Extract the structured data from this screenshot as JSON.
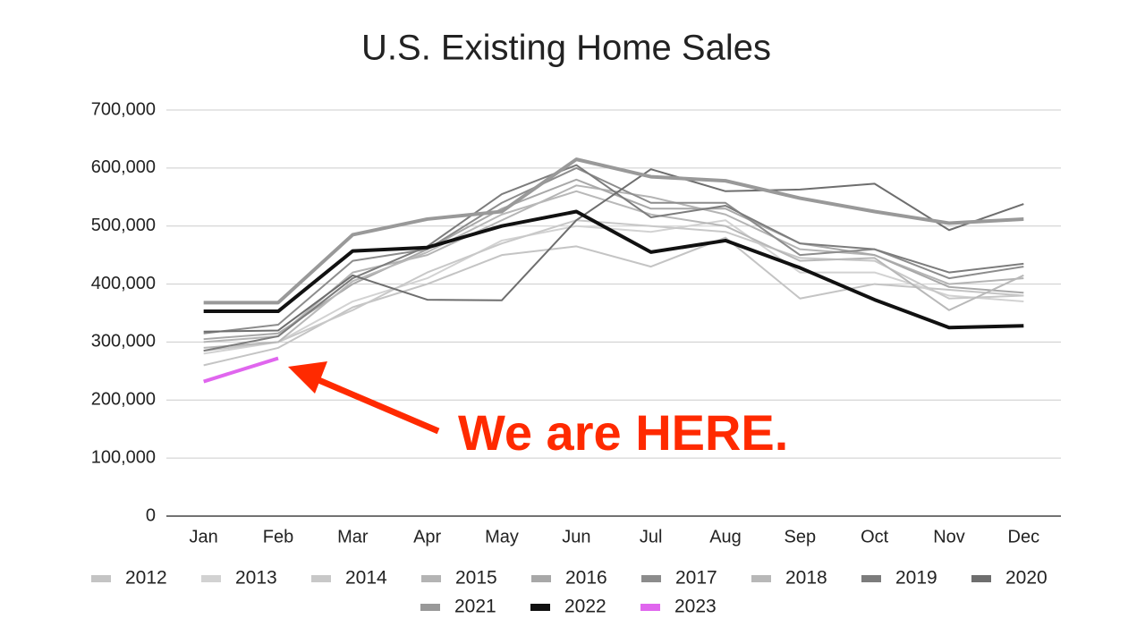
{
  "chart_data": {
    "type": "line",
    "title": "U.S. Existing Home Sales",
    "annotation": "We are HERE.",
    "categories": [
      "Jan",
      "Feb",
      "Mar",
      "Apr",
      "May",
      "Jun",
      "Jul",
      "Aug",
      "Sep",
      "Oct",
      "Nov",
      "Dec"
    ],
    "ylim": [
      0,
      700000
    ],
    "yticks": [
      0,
      {
        "value": 100000,
        "label": "100,000"
      },
      {
        "value": 200000,
        "label": "200,000"
      },
      {
        "value": 300000,
        "label": "300,000"
      },
      {
        "value": 400000,
        "label": "400,000"
      },
      {
        "value": 500000,
        "label": "500,000"
      },
      {
        "value": 600000,
        "label": "600,000"
      },
      {
        "value": 700000,
        "label": "700,000"
      }
    ],
    "grid": true,
    "series": [
      {
        "name": "2012",
        "color": "#c4c4c4",
        "values": [
          260000,
          290000,
          360000,
          400000,
          450000,
          465000,
          430000,
          480000,
          375000,
          400000,
          390000,
          380000
        ]
      },
      {
        "name": "2013",
        "color": "#d2d2d2",
        "values": [
          280000,
          300000,
          370000,
          410000,
          475000,
          500000,
          490000,
          510000,
          420000,
          420000,
          380000,
          370000
        ]
      },
      {
        "name": "2014",
        "color": "#c8c8c8",
        "values": [
          285000,
          300000,
          355000,
          420000,
          470000,
          510000,
          500000,
          490000,
          445000,
          440000,
          375000,
          380000
        ]
      },
      {
        "name": "2015",
        "color": "#b4b4b4",
        "values": [
          300000,
          310000,
          420000,
          450000,
          510000,
          570000,
          550000,
          520000,
          460000,
          450000,
          400000,
          410000
        ]
      },
      {
        "name": "2016",
        "color": "#a8a8a8",
        "values": [
          305000,
          315000,
          400000,
          460000,
          530000,
          580000,
          530000,
          530000,
          470000,
          450000,
          395000,
          385000
        ]
      },
      {
        "name": "2017",
        "color": "#8c8c8c",
        "values": [
          315000,
          330000,
          440000,
          460000,
          540000,
          600000,
          540000,
          540000,
          450000,
          460000,
          410000,
          430000
        ]
      },
      {
        "name": "2018",
        "color": "#b8b8b8",
        "values": [
          290000,
          300000,
          405000,
          455000,
          520000,
          560000,
          520000,
          500000,
          440000,
          445000,
          355000,
          415000
        ]
      },
      {
        "name": "2019",
        "color": "#7c7c7c",
        "values": [
          285000,
          310000,
          410000,
          465000,
          555000,
          605000,
          515000,
          535000,
          470000,
          460000,
          420000,
          435000
        ]
      },
      {
        "name": "2020",
        "color": "#6e6e6e",
        "values": [
          318000,
          320000,
          415000,
          373000,
          372000,
          510000,
          598000,
          560000,
          563000,
          573000,
          493000,
          538000
        ]
      },
      {
        "name": "2021",
        "color": "#999999",
        "values": [
          368000,
          368000,
          485000,
          512000,
          525000,
          615000,
          585000,
          578000,
          548000,
          525000,
          505000,
          512000
        ]
      },
      {
        "name": "2022",
        "color": "#111111",
        "values": [
          353000,
          353000,
          457000,
          463000,
          500000,
          525000,
          455000,
          475000,
          428000,
          373000,
          325000,
          328000
        ]
      },
      {
        "name": "2023",
        "color": "#e066ee",
        "values": [
          232000,
          272000,
          null,
          null,
          null,
          null,
          null,
          null,
          null,
          null,
          null,
          null
        ]
      }
    ]
  }
}
